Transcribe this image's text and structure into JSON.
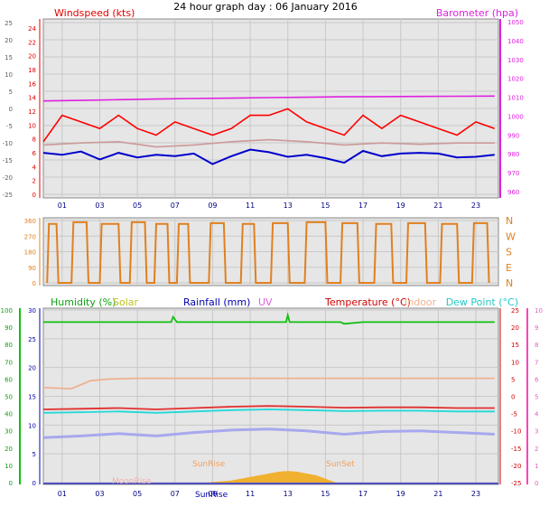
{
  "title": "24 hour graph day : 06 January 2016",
  "colors": {
    "background": "#ffffff",
    "plot_bg": "#e6e6e6",
    "grid": "#c0c0c0",
    "axis_green": "#10c010",
    "axis_pink": "#ff40c0",
    "axis_blue": "#0000aa"
  },
  "x_ticks": [
    "01",
    "03",
    "05",
    "07",
    "09",
    "11",
    "13",
    "15",
    "17",
    "19",
    "21",
    "23"
  ],
  "chart_data": [
    {
      "type": "line",
      "panel": "wind",
      "labels": {
        "left": "Windspeed (kts)",
        "right": "Barometer (hpa)"
      },
      "left_ticks_outer": [
        "25",
        "20",
        "15",
        "10",
        "5",
        "0",
        "-5",
        "-10",
        "-15",
        "-20",
        "-25"
      ],
      "left_ticks_inner": [
        "24",
        "22",
        "20",
        "18",
        "16",
        "14",
        "12",
        "10",
        "8",
        "6",
        "4",
        "2",
        "0"
      ],
      "left_range": [
        0,
        25
      ],
      "right_ticks": [
        "1050",
        "1040",
        "1030",
        "1020",
        "1010",
        "1000",
        "990",
        "980",
        "970",
        "960"
      ],
      "right_range": [
        960,
        1050
      ],
      "x_range_hours": [
        0,
        24.2
      ],
      "series": [
        {
          "name": "barometer",
          "color": "#e020e0",
          "axis": "right",
          "x": [
            0,
            2,
            4,
            6,
            8,
            10,
            12,
            14,
            16,
            18,
            20,
            22,
            24
          ],
          "values": [
            1008,
            1008.3,
            1008.7,
            1009,
            1009.3,
            1009.5,
            1009.8,
            1010,
            1010.2,
            1010.3,
            1010.4,
            1010.5,
            1010.6
          ]
        },
        {
          "name": "gust",
          "color": "#ff0000",
          "axis": "left",
          "x": [
            0,
            1,
            2,
            3,
            4,
            5,
            6,
            7,
            8,
            9,
            10,
            11,
            12,
            13,
            14,
            15,
            16,
            17,
            18,
            19,
            20,
            21,
            22,
            23,
            24
          ],
          "values": [
            8,
            12,
            11,
            10,
            12,
            10,
            9,
            11,
            10,
            9,
            10,
            12,
            12,
            13,
            11,
            10,
            9,
            12,
            10,
            12,
            11,
            10,
            9,
            11,
            10
          ]
        },
        {
          "name": "average",
          "color": "#cc9999",
          "axis": "left",
          "x": [
            0,
            2,
            4,
            6,
            8,
            10,
            12,
            14,
            16,
            18,
            20,
            22,
            24
          ],
          "values": [
            7.5,
            7.8,
            8,
            7.2,
            7.5,
            8,
            8.3,
            8,
            7.5,
            7.8,
            7.6,
            7.8,
            7.8
          ]
        },
        {
          "name": "wind-speed",
          "color": "#0000cc",
          "axis": "left",
          "x": [
            0,
            1,
            2,
            3,
            4,
            5,
            6,
            7,
            8,
            9,
            10,
            11,
            12,
            13,
            14,
            15,
            16,
            17,
            18,
            19,
            20,
            21,
            22,
            23,
            24
          ],
          "values": [
            6.3,
            6,
            6.5,
            5.3,
            6.3,
            5.6,
            6,
            5.8,
            6.2,
            4.6,
            5.8,
            6.8,
            6.4,
            5.7,
            6,
            5.5,
            4.8,
            6.6,
            5.8,
            6.2,
            6.3,
            6.2,
            5.6,
            5.7,
            6
          ]
        }
      ]
    },
    {
      "type": "line",
      "panel": "direction",
      "labels": {
        "left": "",
        "right": ""
      },
      "left_ticks": [
        "360",
        "270",
        "180",
        "90",
        "0"
      ],
      "right_ticks": [
        "N",
        "W",
        "S",
        "E",
        "N"
      ],
      "left_range": [
        0,
        360
      ],
      "x_range_hours": [
        0,
        24.2
      ],
      "series": [
        {
          "name": "wind-direction",
          "color": "#e08020",
          "x": [
            0.2,
            0.3,
            0.7,
            0.8,
            1.5,
            1.6,
            2.3,
            2.4,
            3.0,
            3.1,
            4.0,
            4.1,
            4.6,
            4.7,
            5.4,
            5.5,
            5.9,
            6.0,
            6.6,
            6.7,
            7.1,
            7.2,
            7.7,
            7.8,
            8.8,
            8.9,
            9.6,
            9.7,
            10.5,
            10.6,
            11.2,
            11.3,
            12.1,
            12.2,
            13.0,
            13.1,
            13.9,
            14.0,
            15.0,
            15.1,
            15.8,
            15.9,
            16.7,
            16.8,
            17.6,
            17.7,
            18.5,
            18.6,
            19.3,
            19.4,
            20.3,
            20.4,
            21.1,
            21.2,
            22.0,
            22.1,
            22.8,
            22.9,
            23.6,
            23.7
          ],
          "values": [
            0,
            340,
            340,
            0,
            0,
            350,
            350,
            0,
            0,
            340,
            340,
            0,
            0,
            350,
            350,
            0,
            0,
            340,
            340,
            0,
            0,
            340,
            340,
            0,
            0,
            345,
            345,
            0,
            0,
            340,
            340,
            0,
            0,
            345,
            345,
            0,
            0,
            350,
            350,
            0,
            0,
            345,
            345,
            0,
            0,
            340,
            340,
            0,
            0,
            345,
            345,
            0,
            0,
            340,
            340,
            0,
            0,
            345,
            345,
            0
          ]
        }
      ]
    },
    {
      "type": "line",
      "panel": "temp",
      "labels": {
        "humidity": "Humidity (%)",
        "solar": "Solar",
        "rainfall": "Rainfall (mm)",
        "uv": "UV",
        "temperature": "Temperature (°C)",
        "indoor": "Indoor",
        "dewpoint": "Dew Point (°C)"
      },
      "annotations": {
        "sunrise": "SunRise",
        "sunset": "SunSet",
        "moonrise": "MoonRise",
        "sunrise_axis": "SunRise"
      },
      "humidity_ticks": [
        "100",
        "90",
        "80",
        "70",
        "60",
        "50",
        "40",
        "30",
        "20",
        "10",
        "0"
      ],
      "humidity_range": [
        0,
        100
      ],
      "rainfall_ticks": [
        "30",
        "25",
        "20",
        "15",
        "10",
        "5",
        "0"
      ],
      "rainfall_range": [
        0,
        30
      ],
      "temp_ticks": [
        "25",
        "20",
        "15",
        "10",
        "5",
        "0",
        "-5",
        "-10",
        "-15",
        "-20",
        "-25"
      ],
      "temp_range": [
        -25,
        25
      ],
      "uv_ticks": [
        "10",
        "9",
        "8",
        "7",
        "6",
        "5",
        "4",
        "3",
        "2",
        "1",
        "0"
      ],
      "uv_range": [
        0,
        10
      ],
      "x_range_hours": [
        0,
        24.2
      ],
      "series": [
        {
          "name": "humidity",
          "color": "#10c010",
          "axis": "humidity",
          "x": [
            0,
            2,
            4,
            6,
            6.8,
            6.9,
            7.1,
            8,
            10,
            12,
            12.9,
            13,
            13.1,
            14,
            15.8,
            16,
            17,
            18,
            20,
            22,
            24
          ],
          "values": [
            93,
            93,
            93,
            93,
            93,
            96,
            93,
            93,
            93,
            93,
            93,
            97,
            93,
            93,
            93,
            92,
            93,
            93,
            93,
            93,
            93
          ]
        },
        {
          "name": "indoor",
          "color": "#f0b090",
          "axis": "temp",
          "x": [
            0,
            1.5,
            2.5,
            3.5,
            5,
            8,
            12,
            16,
            20,
            24
          ],
          "values": [
            2.5,
            2.2,
            4.5,
            5,
            5.2,
            5.2,
            5.2,
            5.2,
            5.2,
            5.2
          ]
        },
        {
          "name": "temperature",
          "color": "#e03030",
          "axis": "temp",
          "x": [
            0,
            2,
            4,
            6,
            8,
            10,
            12,
            14,
            16,
            18,
            20,
            22,
            24
          ],
          "values": [
            -3.8,
            -3.6,
            -3.4,
            -3.8,
            -3.4,
            -3,
            -2.8,
            -3,
            -3.3,
            -3.2,
            -3.2,
            -3.4,
            -3.4
          ]
        },
        {
          "name": "dew-point",
          "color": "#20d8d8",
          "axis": "temp",
          "x": [
            0,
            2,
            4,
            6,
            8,
            10,
            12,
            14,
            16,
            18,
            20,
            22,
            24
          ],
          "values": [
            -4.8,
            -4.6,
            -4.4,
            -4.8,
            -4.4,
            -4,
            -3.8,
            -4,
            -4.3,
            -4.2,
            -4.2,
            -4.4,
            -4.4
          ]
        },
        {
          "name": "apparent",
          "color": "#a8a8ee",
          "axis": "temp",
          "x": [
            0,
            2,
            4,
            6,
            8,
            10,
            12,
            14,
            16,
            18,
            20,
            22,
            24
          ],
          "values": [
            -12,
            -11.5,
            -10.8,
            -11.5,
            -10.5,
            -9.8,
            -9.5,
            -10,
            -11,
            -10.2,
            -10,
            -10.5,
            -11
          ]
        },
        {
          "name": "solar",
          "color": "#f0b030",
          "axis": "humidity",
          "x": [
            8.9,
            9.5,
            10,
            10.5,
            11,
            11.5,
            12,
            12.5,
            13,
            13.5,
            14,
            14.5,
            15,
            15.5
          ],
          "values": [
            0,
            0.5,
            1,
            2,
            3,
            4,
            5,
            6,
            6.5,
            6,
            5,
            4,
            2,
            0
          ]
        }
      ]
    }
  ]
}
